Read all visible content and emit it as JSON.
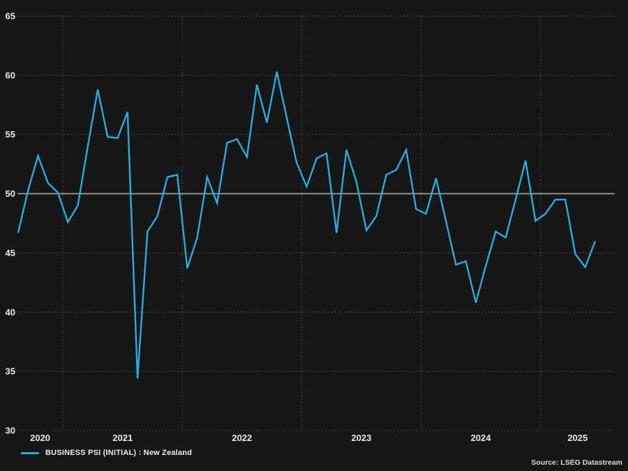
{
  "chart_data": {
    "type": "line",
    "title": "",
    "series_name": "BUSINESS PSI (INITIAL) : New Zealand",
    "x_start": "2020-08",
    "frequency": "monthly",
    "x_year_labels": [
      "2020",
      "2021",
      "2022",
      "2023",
      "2024",
      "2025"
    ],
    "y_ticks": [
      65,
      60,
      55,
      50,
      45,
      40,
      35,
      30
    ],
    "ylim": [
      30,
      65
    ],
    "reference_line": 50,
    "grid": "dashed",
    "legend_position": "bottom-left",
    "values": [
      46.7,
      50.3,
      53.2,
      50.9,
      50.1,
      47.6,
      49.0,
      54.0,
      58.8,
      54.8,
      54.7,
      56.9,
      34.4,
      46.8,
      48.1,
      51.4,
      51.6,
      43.7,
      46.3,
      51.4,
      49.2,
      54.3,
      54.6,
      53.1,
      59.2,
      56.0,
      60.3,
      56.4,
      52.6,
      50.6,
      53.0,
      53.4,
      46.7,
      53.7,
      51.0,
      46.9,
      48.1,
      51.6,
      52.0,
      53.7,
      48.7,
      48.3,
      51.3,
      47.7,
      44.0,
      44.3,
      40.8,
      43.9,
      46.8,
      46.3,
      49.5,
      52.8,
      47.7,
      48.3,
      49.5,
      49.5,
      44.9,
      43.8,
      46.0
    ]
  },
  "legend": {
    "label": "BUSINESS PSI (INITIAL) : New Zealand"
  },
  "source": {
    "label": "Source: LSEG Datastream"
  },
  "colors": {
    "background": "#161616",
    "line": "#29ACE2",
    "grid_dashed": "#575757",
    "reference_line": "#969696",
    "tick_text": "#e9e9e9"
  }
}
